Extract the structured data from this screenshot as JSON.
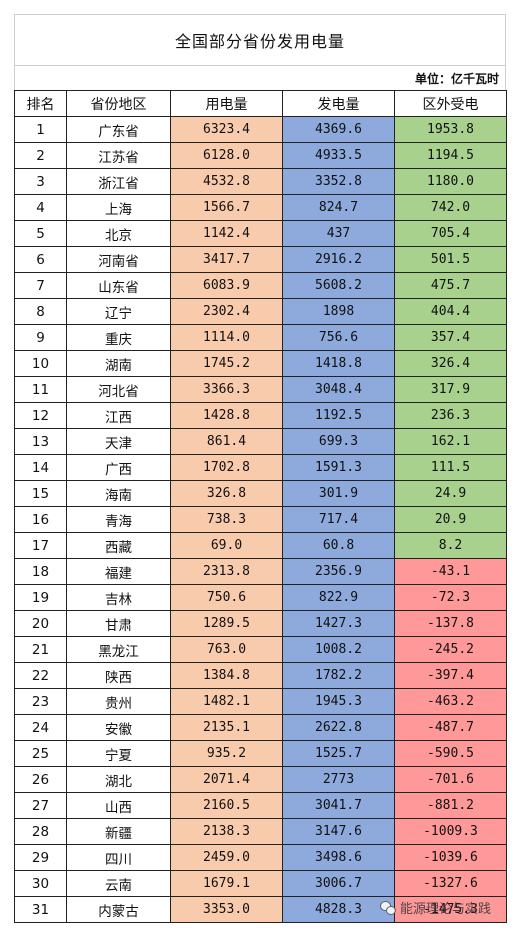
{
  "title": "全国部分省份发用电量",
  "unit": "单位：亿千瓦时",
  "headers": [
    "排名",
    "省份地区",
    "用电量",
    "发电量",
    "区外受电"
  ],
  "rows": [
    {
      "rank": "1",
      "province": "广东省",
      "use": "6323.4",
      "gen": "4369.6",
      "ext": "1953.8"
    },
    {
      "rank": "2",
      "province": "江苏省",
      "use": "6128.0",
      "gen": "4933.5",
      "ext": "1194.5"
    },
    {
      "rank": "3",
      "province": "浙江省",
      "use": "4532.8",
      "gen": "3352.8",
      "ext": "1180.0"
    },
    {
      "rank": "4",
      "province": "上海",
      "use": "1566.7",
      "gen": "824.7",
      "ext": "742.0"
    },
    {
      "rank": "5",
      "province": "北京",
      "use": "1142.4",
      "gen": "437",
      "ext": "705.4"
    },
    {
      "rank": "6",
      "province": "河南省",
      "use": "3417.7",
      "gen": "2916.2",
      "ext": "501.5"
    },
    {
      "rank": "7",
      "province": "山东省",
      "use": "6083.9",
      "gen": "5608.2",
      "ext": "475.7"
    },
    {
      "rank": "8",
      "province": "辽宁",
      "use": "2302.4",
      "gen": "1898",
      "ext": "404.4"
    },
    {
      "rank": "9",
      "province": "重庆",
      "use": "1114.0",
      "gen": "756.6",
      "ext": "357.4"
    },
    {
      "rank": "10",
      "province": "湖南",
      "use": "1745.2",
      "gen": "1418.8",
      "ext": "326.4"
    },
    {
      "rank": "11",
      "province": "河北省",
      "use": "3366.3",
      "gen": "3048.4",
      "ext": "317.9"
    },
    {
      "rank": "12",
      "province": "江西",
      "use": "1428.8",
      "gen": "1192.5",
      "ext": "236.3"
    },
    {
      "rank": "13",
      "province": "天津",
      "use": "861.4",
      "gen": "699.3",
      "ext": "162.1"
    },
    {
      "rank": "14",
      "province": "广西",
      "use": "1702.8",
      "gen": "1591.3",
      "ext": "111.5"
    },
    {
      "rank": "15",
      "province": "海南",
      "use": "326.8",
      "gen": "301.9",
      "ext": "24.9"
    },
    {
      "rank": "16",
      "province": "青海",
      "use": "738.3",
      "gen": "717.4",
      "ext": "20.9"
    },
    {
      "rank": "17",
      "province": "西藏",
      "use": "69.0",
      "gen": "60.8",
      "ext": "8.2"
    },
    {
      "rank": "18",
      "province": "福建",
      "use": "2313.8",
      "gen": "2356.9",
      "ext": "-43.1"
    },
    {
      "rank": "19",
      "province": "吉林",
      "use": "750.6",
      "gen": "822.9",
      "ext": "-72.3"
    },
    {
      "rank": "20",
      "province": "甘肃",
      "use": "1289.5",
      "gen": "1427.3",
      "ext": "-137.8"
    },
    {
      "rank": "21",
      "province": "黑龙江",
      "use": "763.0",
      "gen": "1008.2",
      "ext": "-245.2"
    },
    {
      "rank": "22",
      "province": "陕西",
      "use": "1384.8",
      "gen": "1782.2",
      "ext": "-397.4"
    },
    {
      "rank": "23",
      "province": "贵州",
      "use": "1482.1",
      "gen": "1945.3",
      "ext": "-463.2"
    },
    {
      "rank": "24",
      "province": "安徽",
      "use": "2135.1",
      "gen": "2622.8",
      "ext": "-487.7"
    },
    {
      "rank": "25",
      "province": "宁夏",
      "use": "935.2",
      "gen": "1525.7",
      "ext": "-590.5"
    },
    {
      "rank": "26",
      "province": "湖北",
      "use": "2071.4",
      "gen": "2773",
      "ext": "-701.6"
    },
    {
      "rank": "27",
      "province": "山西",
      "use": "2160.5",
      "gen": "3041.7",
      "ext": "-881.2"
    },
    {
      "rank": "28",
      "province": "新疆",
      "use": "2138.3",
      "gen": "3147.6",
      "ext": "-1009.3"
    },
    {
      "rank": "29",
      "province": "四川",
      "use": "2459.0",
      "gen": "3498.6",
      "ext": "-1039.6"
    },
    {
      "rank": "30",
      "province": "云南",
      "use": "1679.1",
      "gen": "3006.7",
      "ext": "-1327.6"
    },
    {
      "rank": "31",
      "province": "内蒙古",
      "use": "3353.0",
      "gen": "4828.3",
      "ext": "-1475.3"
    }
  ],
  "watermark": "能源理论与实践",
  "colors": {
    "use": "#f8cbad",
    "gen": "#8ea9db",
    "ext_positive": "#a9d18e",
    "ext_negative": "#ff9999"
  }
}
